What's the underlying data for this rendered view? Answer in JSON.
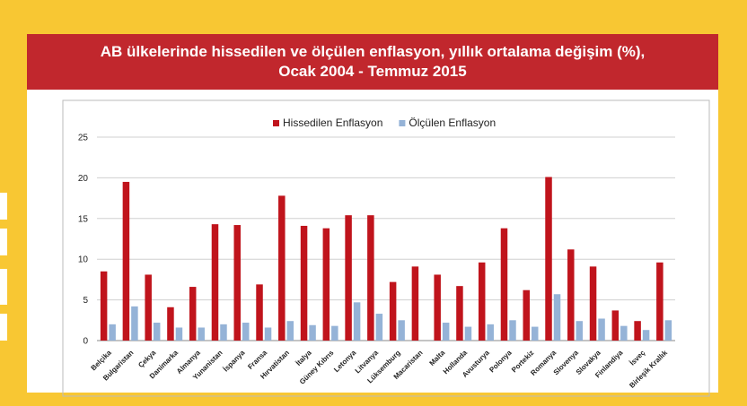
{
  "chart_data": {
    "type": "bar",
    "title": [
      "AB ülkelerinde hissedilen ve ölçülen enflasyon, yıllık ortalama değişim (%),",
      "Ocak 2004 - Temmuz 2015"
    ],
    "categories": [
      "Belçika",
      "Bulgaristan",
      "Çekya",
      "Danimarka",
      "Almanya",
      "Yunanistan",
      "İspanya",
      "Fransa",
      "Hırvatistan",
      "İtalya",
      "Güney Kıbrıs",
      "Letonya",
      "Litvanya",
      "Lüksemburg",
      "Macaristan",
      "Malta",
      "Hollanda",
      "Avusturya",
      "Polonya",
      "Portekiz",
      "Romanya",
      "Slovenya",
      "Slovakya",
      "Finlandiya",
      "İsveç",
      "Birleşik Krallık"
    ],
    "series": [
      {
        "name": "Hissedilen Enflasyon",
        "color": "#c0141c",
        "values": [
          8.5,
          19.5,
          8.1,
          4.1,
          6.6,
          14.3,
          14.2,
          6.9,
          17.8,
          14.1,
          13.8,
          15.4,
          15.4,
          7.2,
          9.1,
          8.1,
          6.7,
          9.6,
          13.8,
          6.2,
          20.1,
          11.2,
          9.1,
          3.7,
          2.4,
          9.6
        ]
      },
      {
        "name": "Ölçülen Enflasyon",
        "color": "#95b3d7",
        "values": [
          2.0,
          4.2,
          2.2,
          1.6,
          1.6,
          2.0,
          2.2,
          1.6,
          2.4,
          1.9,
          1.8,
          4.7,
          3.3,
          2.5,
          null,
          2.2,
          1.7,
          2.0,
          2.5,
          1.7,
          5.7,
          2.4,
          2.7,
          1.8,
          1.3,
          2.5
        ]
      }
    ],
    "ylim": [
      0,
      25
    ],
    "yticks": [
      0,
      5,
      10,
      15,
      20,
      25
    ],
    "grid": true,
    "legend": "top"
  }
}
